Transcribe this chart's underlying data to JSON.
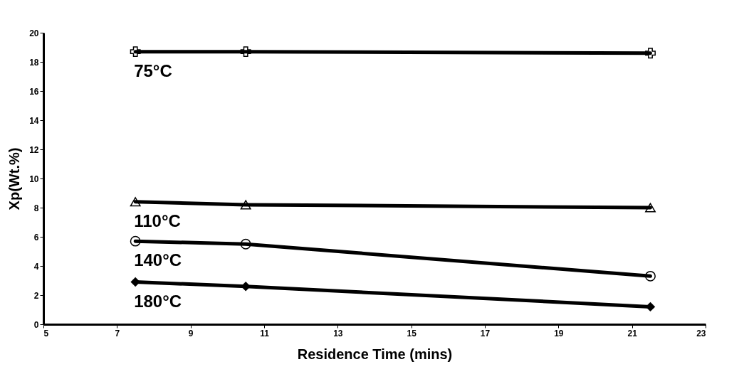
{
  "chart_data": {
    "type": "line",
    "xlabel": "Residence Time (mins)",
    "ylabel": "Xp(Wt.%)",
    "xlim": [
      5,
      23
    ],
    "xticks": [
      5,
      7,
      9,
      11,
      13,
      15,
      17,
      19,
      21,
      23
    ],
    "ylim": [
      0,
      20
    ],
    "yticks": [
      0,
      2,
      4,
      6,
      8,
      10,
      12,
      14,
      16,
      18,
      20
    ],
    "grid": false,
    "x": [
      7.5,
      10.5,
      21.5
    ],
    "series": [
      {
        "name": "75°C",
        "color": "#000000",
        "marker": "cross",
        "values": [
          18.7,
          18.7,
          18.6
        ]
      },
      {
        "name": "110°C",
        "color": "#000000",
        "marker": "triangle",
        "values": [
          8.4,
          8.2,
          8.0
        ]
      },
      {
        "name": "140°C",
        "color": "#000000",
        "marker": "circle",
        "values": [
          5.7,
          5.5,
          3.3
        ]
      },
      {
        "name": "180°C",
        "color": "#000000",
        "marker": "diamond",
        "values": [
          2.9,
          2.6,
          1.2
        ]
      }
    ]
  }
}
